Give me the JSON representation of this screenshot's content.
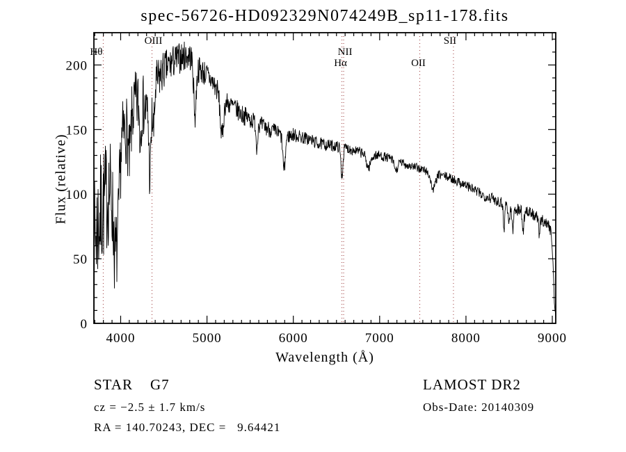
{
  "chart_data": {
    "type": "line",
    "title": "spec-56726-HD092329N074249B_sp11-178.fits",
    "xlabel": "Wavelength (Å)",
    "ylabel": "Flux (relative)",
    "xlim": [
      3690,
      9040
    ],
    "ylim": [
      0,
      225
    ],
    "x_major_ticks": [
      4000,
      5000,
      6000,
      7000,
      8000,
      9000
    ],
    "x_minor_step": 100,
    "y_major_ticks": [
      0,
      50,
      100,
      150,
      200
    ],
    "y_minor_step": 10,
    "grid": false,
    "legend": "none",
    "background_color": "#ffffff",
    "frame_color": "#000000",
    "line_color": "#000000",
    "spectral_line_color": "#993333",
    "spectral_lines": [
      {
        "label": "Hθ",
        "wavelength": 3798,
        "row": 1,
        "anchor": "end",
        "dx": -1
      },
      {
        "label": "OIII",
        "wavelength": 4363,
        "row": 0,
        "anchor": "middle",
        "dx": 2
      },
      {
        "label": "NII",
        "wavelength": 6583,
        "row": 1,
        "anchor": "middle",
        "dx": 2
      },
      {
        "label": "Hα",
        "wavelength": 6563,
        "row": 2,
        "anchor": "middle",
        "dx": -2
      },
      {
        "label": "OII",
        "wavelength": 7465,
        "row": 2,
        "anchor": "middle",
        "dx": -2
      },
      {
        "label": "SII",
        "wavelength": 7855,
        "row": 0,
        "anchor": "middle",
        "dx": -5
      }
    ],
    "series": [
      {
        "name": "flux",
        "noise_seed": 7,
        "continuum": [
          [
            3690,
            55
          ],
          [
            3710,
            70
          ],
          [
            3740,
            78
          ],
          [
            3770,
            85
          ],
          [
            3800,
            92
          ],
          [
            3850,
            100
          ],
          [
            3900,
            108
          ],
          [
            3950,
            122
          ],
          [
            4000,
            140
          ],
          [
            4050,
            150
          ],
          [
            4100,
            160
          ],
          [
            4150,
            167
          ],
          [
            4200,
            172
          ],
          [
            4250,
            170
          ],
          [
            4300,
            163
          ],
          [
            4360,
            168
          ],
          [
            4400,
            183
          ],
          [
            4450,
            190
          ],
          [
            4500,
            196
          ],
          [
            4550,
            199
          ],
          [
            4600,
            202
          ],
          [
            4650,
            204
          ],
          [
            4700,
            206
          ],
          [
            4750,
            207
          ],
          [
            4800,
            207
          ],
          [
            4850,
            202
          ],
          [
            4900,
            197
          ],
          [
            4950,
            195
          ],
          [
            5000,
            192
          ],
          [
            5050,
            188
          ],
          [
            5100,
            183
          ],
          [
            5150,
            177
          ],
          [
            5200,
            172
          ],
          [
            5250,
            170
          ],
          [
            5300,
            168
          ],
          [
            5350,
            165
          ],
          [
            5400,
            162
          ],
          [
            5450,
            160
          ],
          [
            5500,
            158
          ],
          [
            5550,
            156
          ],
          [
            5600,
            154
          ],
          [
            5700,
            151
          ],
          [
            5800,
            148
          ],
          [
            5900,
            144
          ],
          [
            6000,
            146
          ],
          [
            6100,
            144
          ],
          [
            6200,
            142
          ],
          [
            6300,
            139
          ],
          [
            6400,
            138
          ],
          [
            6500,
            137
          ],
          [
            6600,
            136
          ],
          [
            6700,
            134
          ],
          [
            6800,
            132
          ],
          [
            6900,
            130
          ],
          [
            7000,
            130
          ],
          [
            7100,
            128
          ],
          [
            7200,
            126
          ],
          [
            7300,
            123
          ],
          [
            7400,
            121
          ],
          [
            7500,
            119
          ],
          [
            7600,
            116
          ],
          [
            7700,
            115
          ],
          [
            7800,
            113
          ],
          [
            7900,
            110
          ],
          [
            8000,
            107
          ],
          [
            8100,
            103
          ],
          [
            8200,
            99
          ],
          [
            8300,
            97
          ],
          [
            8400,
            94
          ],
          [
            8500,
            91
          ],
          [
            8600,
            88
          ],
          [
            8700,
            87
          ],
          [
            8800,
            83
          ],
          [
            8900,
            79
          ],
          [
            8950,
            77
          ],
          [
            8990,
            70
          ],
          [
            9010,
            45
          ],
          [
            9025,
            15
          ],
          [
            9040,
            2
          ]
        ],
        "noise_profile": [
          [
            3690,
            52
          ],
          [
            3780,
            48
          ],
          [
            3860,
            42
          ],
          [
            3950,
            33
          ],
          [
            4050,
            28
          ],
          [
            4200,
            26
          ],
          [
            4350,
            22
          ],
          [
            4500,
            15
          ],
          [
            4700,
            12
          ],
          [
            5000,
            10
          ],
          [
            5300,
            8
          ],
          [
            5600,
            7
          ],
          [
            6000,
            5.5
          ],
          [
            6400,
            4.5
          ],
          [
            6800,
            4
          ],
          [
            7200,
            3.5
          ],
          [
            7800,
            3.5
          ],
          [
            8300,
            4.5
          ],
          [
            8700,
            5
          ],
          [
            9000,
            4
          ]
        ],
        "absorption_features": [
          [
            3933,
            52,
            20
          ],
          [
            3968,
            48,
            20
          ],
          [
            4101,
            34,
            16
          ],
          [
            4227,
            26,
            10
          ],
          [
            4340,
            52,
            12
          ],
          [
            4383,
            28,
            10
          ],
          [
            4861,
            40,
            14
          ],
          [
            5172,
            30,
            18
          ],
          [
            5577,
            20,
            8
          ],
          [
            5893,
            26,
            14
          ],
          [
            6563,
            22,
            12
          ],
          [
            6870,
            10,
            24
          ],
          [
            7190,
            8,
            20
          ],
          [
            7620,
            12,
            26
          ],
          [
            8440,
            22,
            7
          ],
          [
            8498,
            14,
            9
          ],
          [
            8542,
            18,
            9
          ],
          [
            8662,
            16,
            9
          ],
          [
            8850,
            15,
            7
          ]
        ]
      }
    ]
  },
  "annotations": {
    "class_label": "STAR    G7",
    "cz": "cz = −2.5 ± 1.7 km/s",
    "ra_dec": "RA = 140.70243, DEC =   9.64421",
    "survey": "LAMOST DR2",
    "obs_date": "Obs-Date: 20140309"
  }
}
